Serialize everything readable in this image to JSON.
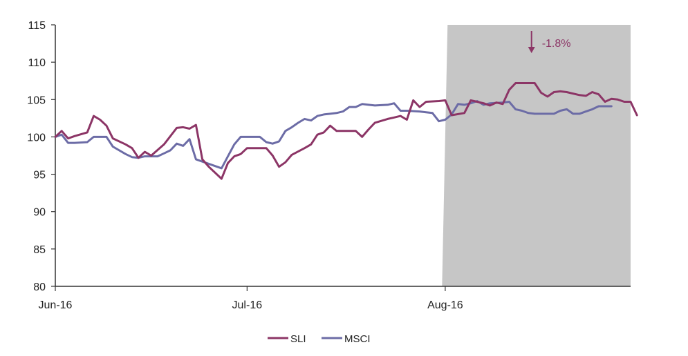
{
  "chart_data": {
    "type": "line",
    "title": "",
    "xlabel": "",
    "ylabel": "",
    "ylim": [
      80,
      115
    ],
    "yticks": [
      80,
      85,
      90,
      95,
      100,
      105,
      110,
      115
    ],
    "xlim": [
      0,
      90
    ],
    "xticks": [
      {
        "label": "Jun-16",
        "x": 0
      },
      {
        "label": "Jul-16",
        "x": 30
      },
      {
        "label": "Aug-16",
        "x": 61
      }
    ],
    "grid": false,
    "legend": "bottom-center",
    "shaded_region": {
      "x_start": 60.5,
      "x_end": 90,
      "color": "#c6c6c6"
    },
    "annotation": {
      "text": "-1.8%",
      "arrow": "down",
      "x": 74.5,
      "color": "#8c3566"
    },
    "series": [
      {
        "name": "SLI",
        "color": "#8c3566",
        "points": [
          [
            0,
            100
          ],
          [
            1,
            100.8
          ],
          [
            2,
            99.8
          ],
          [
            3,
            100.1
          ],
          [
            5,
            100.6
          ],
          [
            6,
            102.8
          ],
          [
            7,
            102.3
          ],
          [
            8,
            101.5
          ],
          [
            9,
            99.8
          ],
          [
            11,
            99
          ],
          [
            12,
            98.5
          ],
          [
            13,
            97.2
          ],
          [
            14,
            98
          ],
          [
            15,
            97.5
          ],
          [
            17,
            99
          ],
          [
            19,
            101.2
          ],
          [
            20,
            101.3
          ],
          [
            21,
            101.1
          ],
          [
            22,
            101.6
          ],
          [
            23,
            97
          ],
          [
            24,
            96
          ],
          [
            26,
            94.4
          ],
          [
            27,
            96.5
          ],
          [
            28,
            97.4
          ],
          [
            29,
            97.7
          ],
          [
            30,
            98.5
          ],
          [
            33,
            98.5
          ],
          [
            34,
            97.5
          ],
          [
            35,
            96
          ],
          [
            36,
            96.6
          ],
          [
            37,
            97.6
          ],
          [
            39,
            98.5
          ],
          [
            40,
            99
          ],
          [
            41,
            100.3
          ],
          [
            42,
            100.6
          ],
          [
            43,
            101.5
          ],
          [
            44,
            100.8
          ],
          [
            47,
            100.8
          ],
          [
            48,
            100
          ],
          [
            49,
            101
          ],
          [
            50,
            101.9
          ],
          [
            52,
            102.4
          ],
          [
            53,
            102.6
          ],
          [
            54,
            102.8
          ],
          [
            55,
            102.3
          ],
          [
            56,
            104.9
          ],
          [
            57,
            104
          ],
          [
            58,
            104.7
          ],
          [
            60,
            104.8
          ],
          [
            61,
            104.9
          ],
          [
            62,
            102.9
          ],
          [
            64,
            103.2
          ],
          [
            65,
            104.9
          ],
          [
            66,
            104.7
          ],
          [
            67,
            104.5
          ],
          [
            68,
            104.2
          ],
          [
            69,
            104.6
          ],
          [
            70,
            104.4
          ],
          [
            71,
            106.3
          ],
          [
            72,
            107.2
          ],
          [
            73,
            107.2
          ],
          [
            74,
            107.2
          ],
          [
            75,
            107.2
          ],
          [
            76,
            105.9
          ],
          [
            77,
            105.4
          ],
          [
            78,
            106
          ],
          [
            79,
            106.1
          ],
          [
            80,
            106
          ],
          [
            82,
            105.6
          ],
          [
            83,
            105.5
          ],
          [
            84,
            106
          ],
          [
            85,
            105.7
          ],
          [
            86,
            104.7
          ],
          [
            87,
            105.1
          ],
          [
            88,
            105
          ],
          [
            89,
            104.7
          ],
          [
            90,
            104.7
          ],
          [
            91,
            102.9
          ]
        ]
      },
      {
        "name": "MSCI",
        "color": "#6c6ca6",
        "points": [
          [
            0,
            100
          ],
          [
            1,
            100.3
          ],
          [
            2,
            99.2
          ],
          [
            3,
            99.2
          ],
          [
            5,
            99.3
          ],
          [
            6,
            100
          ],
          [
            7,
            100
          ],
          [
            8,
            100
          ],
          [
            9,
            98.7
          ],
          [
            11,
            97.7
          ],
          [
            12,
            97.3
          ],
          [
            13,
            97.2
          ],
          [
            14,
            97.4
          ],
          [
            15,
            97.4
          ],
          [
            16,
            97.4
          ],
          [
            17,
            97.8
          ],
          [
            18,
            98.2
          ],
          [
            19,
            99.1
          ],
          [
            20,
            98.8
          ],
          [
            21,
            99.7
          ],
          [
            22,
            97
          ],
          [
            24,
            96.4
          ],
          [
            26,
            95.8
          ],
          [
            27,
            97.4
          ],
          [
            28,
            99
          ],
          [
            29,
            100
          ],
          [
            30,
            100
          ],
          [
            32,
            100
          ],
          [
            33,
            99.3
          ],
          [
            34,
            99.1
          ],
          [
            35,
            99.4
          ],
          [
            36,
            100.8
          ],
          [
            37,
            101.3
          ],
          [
            38,
            101.9
          ],
          [
            39,
            102.4
          ],
          [
            40,
            102.2
          ],
          [
            41,
            102.8
          ],
          [
            42,
            103
          ],
          [
            43,
            103.1
          ],
          [
            44,
            103.2
          ],
          [
            45,
            103.4
          ],
          [
            46,
            104
          ],
          [
            47,
            104
          ],
          [
            48,
            104.4
          ],
          [
            49,
            104.3
          ],
          [
            50,
            104.2
          ],
          [
            52,
            104.3
          ],
          [
            53,
            104.5
          ],
          [
            54,
            103.5
          ],
          [
            55,
            103.5
          ],
          [
            57,
            103.4
          ],
          [
            58,
            103.3
          ],
          [
            59,
            103.2
          ],
          [
            60,
            102.1
          ],
          [
            61,
            102.3
          ],
          [
            62,
            103
          ],
          [
            63,
            104.4
          ],
          [
            64,
            104.3
          ],
          [
            65,
            104.5
          ],
          [
            66,
            104.8
          ],
          [
            67,
            104.3
          ],
          [
            68,
            104.5
          ],
          [
            70,
            104.6
          ],
          [
            71,
            104.7
          ],
          [
            72,
            103.7
          ],
          [
            73,
            103.5
          ],
          [
            74,
            103.2
          ],
          [
            75,
            103.1
          ],
          [
            77,
            103.1
          ],
          [
            78,
            103.1
          ],
          [
            79,
            103.5
          ],
          [
            80,
            103.7
          ],
          [
            81,
            103.1
          ],
          [
            82,
            103.1
          ],
          [
            83,
            103.4
          ],
          [
            84,
            103.7
          ],
          [
            85,
            104.1
          ],
          [
            86,
            104.1
          ],
          [
            87,
            104.1
          ]
        ]
      }
    ]
  }
}
